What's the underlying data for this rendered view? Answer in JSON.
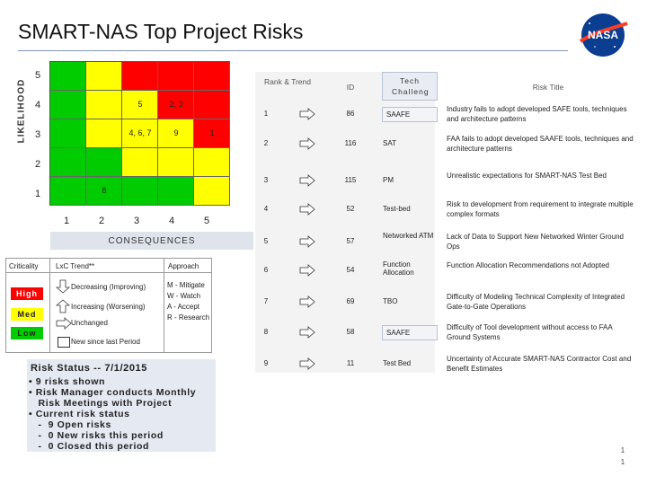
{
  "title": "SMART-NAS Top Project Risks",
  "logo_text": "NASA",
  "colors": {
    "red": "#ff0000",
    "yellow": "#ffff00",
    "green": "#00cc00"
  },
  "matrix": {
    "likelihood_label": "LIKELIHOOD",
    "consequences_label": "CONSEQUENCES",
    "y_ticks": [
      "5",
      "4",
      "3",
      "2",
      "1"
    ],
    "x_ticks": [
      "1",
      "2",
      "3",
      "4",
      "5"
    ],
    "cells": [
      [
        "green",
        "yellow",
        "red",
        "red",
        "red"
      ],
      [
        "green",
        "yellow",
        "yellow",
        "red",
        "red"
      ],
      [
        "green",
        "yellow",
        "yellow",
        "yellow",
        "red"
      ],
      [
        "green",
        "green",
        "yellow",
        "yellow",
        "yellow"
      ],
      [
        "green",
        "green",
        "green",
        "green",
        "yellow"
      ]
    ],
    "labels": [
      {
        "text": "5",
        "row": 1,
        "col": 2
      },
      {
        "text": "2, 3",
        "row": 1,
        "col": 3
      },
      {
        "text": "4, 6, 7",
        "row": 2,
        "col": 2
      },
      {
        "text": "9",
        "row": 2,
        "col": 3
      },
      {
        "text": "1",
        "row": 2,
        "col": 4
      },
      {
        "text": "8",
        "row": 4,
        "col": 1
      }
    ]
  },
  "legend": {
    "criticality": "Criticality",
    "trend": "LxC Trend**",
    "approach": "Approach",
    "high": "High",
    "med": "Med",
    "low": "Low",
    "decreasing": "Decreasing (Improving)",
    "increasing": "Increasing (Worsening)",
    "unchanged": "Unchanged",
    "new_since": "New since last Period",
    "approaches": [
      "M - Mitigate",
      "W - Watch",
      "A - Accept",
      "R - Research"
    ]
  },
  "status": {
    "heading": "Risk Status -- 7/1/2015",
    "lines": [
      "• 9 risks shown",
      "• Risk Manager conducts Monthly",
      "   Risk Meetings with Project",
      "• Current risk status",
      "   -  9 Open risks",
      "   -  0 New risks this period",
      "   -  0 Closed this period"
    ]
  },
  "table": {
    "headers": {
      "rank": "Rank & Trend",
      "id": "ID",
      "tech": "Tech Challeng",
      "title": "Risk Title"
    },
    "rows": [
      {
        "rank": "1",
        "id": "86",
        "tech": "SAAFE",
        "title": "Industry fails to adopt developed SAFE tools, techniques and architecture patterns",
        "boxed": true
      },
      {
        "rank": "2",
        "id": "116",
        "tech": "SAT",
        "title": "FAA fails to adopt developed SAAFE tools, techniques and architecture patterns",
        "boxed": false
      },
      {
        "rank": "3",
        "id": "115",
        "tech": "PM",
        "title": "Unrealistic expectations for SMART-NAS Test Bed",
        "boxed": false
      },
      {
        "rank": "4",
        "id": "52",
        "tech": "Test-bed",
        "title": "Risk to development from requirement to integrate multiple complex formats",
        "boxed": false
      },
      {
        "rank": "5",
        "id": "57",
        "tech": "Networked ATM",
        "title": "Lack of Data to Support New Networked Winter Ground Ops",
        "boxed": false
      },
      {
        "rank": "6",
        "id": "54",
        "tech": "Function Allocation",
        "title": "Function Allocation Recommendations not Adopted",
        "boxed": false
      },
      {
        "rank": "7",
        "id": "69",
        "tech": "TBO",
        "title": "Difficulty of Modeling Technical Complexity of Integrated Gate-to-Gate Operations",
        "boxed": false
      },
      {
        "rank": "8",
        "id": "58",
        "tech": "SAAFE",
        "title": "Difficulty of Tool development without access to FAA Ground Systems",
        "boxed": true
      },
      {
        "rank": "9",
        "id": "11",
        "tech": "Test Bed",
        "title": "Uncertainty of Accurate SMART-NAS Contractor Cost and Benefit Estimates",
        "boxed": false
      }
    ]
  },
  "page_number": "1 1"
}
